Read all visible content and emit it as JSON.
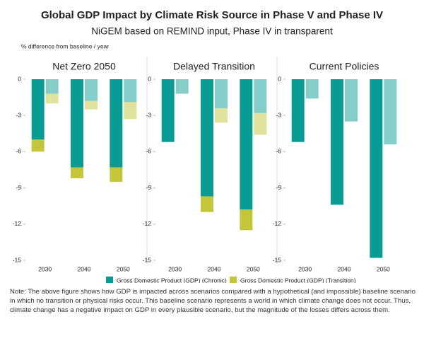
{
  "chart_data": {
    "type": "bar",
    "title": "Global GDP Impact by Climate Risk Source in Phase V and Phase IV",
    "subtitle": "NiGEM based on REMIND input, Phase IV in transparent",
    "y_label": "% difference from baseline / year",
    "series": [
      {
        "name": "Gross Domestic Product (GDP) (Chronic)",
        "color": "#0a9b94"
      },
      {
        "name": "Gross Domestic Product (GDP) (Transition)",
        "color": "#c3c63a"
      }
    ],
    "ylim": [
      -15,
      0
    ],
    "yticks": [
      0,
      -3,
      -6,
      -9,
      -12,
      -15
    ],
    "panels": [
      {
        "title": "Net Zero 2050",
        "categories": [
          "2030",
          "2040",
          "2050"
        ],
        "phase_v": [
          [
            -5.0,
            -7.3,
            -7.3
          ],
          [
            -1.0,
            -0.9,
            -1.2
          ]
        ],
        "phase_iv": [
          [
            -1.2,
            -1.8,
            -1.9
          ],
          [
            -0.8,
            -0.7,
            -1.4
          ]
        ]
      },
      {
        "title": "Delayed Transition",
        "categories": [
          "2030",
          "2040",
          "2050"
        ],
        "phase_v": [
          [
            -5.2,
            -9.7,
            -10.8
          ],
          [
            0,
            -1.3,
            -1.7
          ]
        ],
        "phase_iv": [
          [
            -1.2,
            -2.4,
            -2.8
          ],
          [
            0,
            -1.2,
            -1.8
          ]
        ]
      },
      {
        "title": "Current Policies",
        "categories": [
          "2030",
          "2040",
          "2050"
        ],
        "phase_v": [
          [
            -5.2,
            -10.4,
            -14.8
          ],
          [
            0,
            0,
            0
          ]
        ],
        "phase_iv": [
          [
            -1.6,
            -3.5,
            -5.4
          ],
          [
            0,
            0,
            0
          ]
        ]
      }
    ],
    "note": "Note: The above figure shows how GDP is impacted across scenarios compared with a hypothetical (and impossible) baseline scenario in which no transition or physical risks occur. This baseline scenario represents a world in which climate change does not occur. Thus, climate change has a negative impact on GDP in every plausible scenario, but the magnitude of the losses differs across them."
  }
}
